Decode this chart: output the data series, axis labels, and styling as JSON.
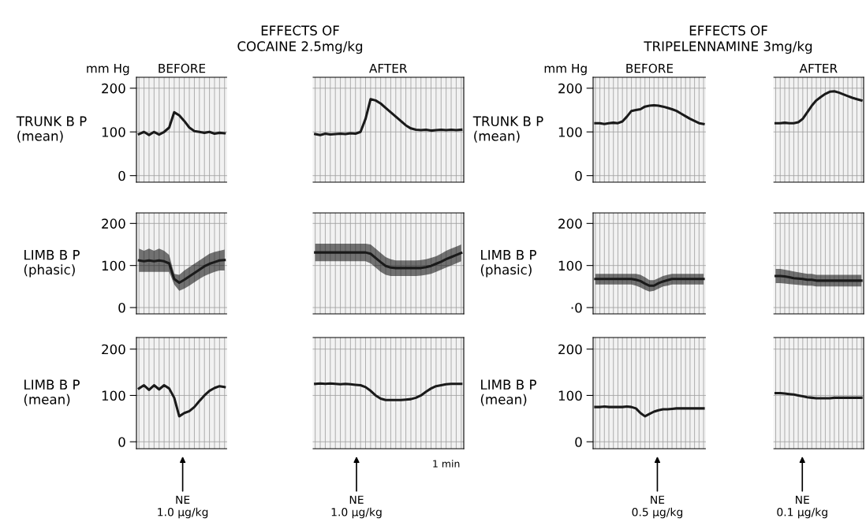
{
  "chart_data": [
    {
      "type": "line",
      "title": "EFFECTS OF\nCOCAINE 2.5mg/kg",
      "ylabel": "TRUNK B P\n(mean)",
      "annotations": [
        "mm Hg",
        "BEFORE",
        "AFTER"
      ],
      "categories": [
        null,
        null,
        null,
        null,
        null,
        null,
        null,
        null,
        null,
        null,
        null,
        null,
        null,
        null,
        null,
        null,
        null,
        null,
        null,
        null,
        null,
        null,
        null,
        null,
        null,
        null,
        null,
        null,
        null,
        null,
        null,
        null,
        null,
        null,
        null,
        null,
        null,
        null,
        null,
        null,
        null,
        null,
        null,
        null,
        null,
        null,
        null,
        null,
        null,
        null,
        null,
        null,
        null,
        null,
        null,
        null,
        null,
        null,
        null,
        null,
        null,
        null,
        null,
        null,
        null
      ],
      "series": [
        {
          "color": "#1a1a1a",
          "values": [
            95,
            100,
            93,
            100,
            94,
            100,
            110,
            145,
            138,
            125,
            110,
            102,
            100,
            98,
            100,
            96,
            98,
            97,
            null,
            null,
            null,
            null,
            null,
            null,
            null,
            null,
            null,
            null,
            null,
            null,
            null,
            null,
            null,
            null,
            null,
            95,
            93,
            96,
            94,
            95,
            96,
            95,
            97,
            96,
            100,
            130,
            175,
            172,
            165,
            155,
            145,
            135,
            125,
            115,
            108,
            105,
            104,
            105,
            103,
            104,
            105,
            104,
            105,
            104,
            105
          ]
        }
      ],
      "ylim": [
        -15,
        225
      ],
      "yticks": [
        0,
        100,
        200
      ],
      "tick_labels": "y",
      "grid": true
    },
    {
      "type": "line",
      "title": "EFFECTS OF\nTRIPELENNAMINE 3mg/kg",
      "ylabel": "TRUNK B P\n(mean)",
      "annotations": [
        "mm Hg",
        "BEFORE",
        "AFTER"
      ],
      "categories": [
        null,
        null,
        null,
        null,
        null,
        null,
        null,
        null,
        null,
        null,
        null,
        null,
        null,
        null,
        null,
        null,
        null,
        null,
        null,
        null,
        null,
        null,
        null,
        null,
        null,
        null,
        null,
        null,
        null,
        null,
        null,
        null,
        null,
        null,
        null,
        null,
        null,
        null,
        null,
        null,
        null,
        null,
        null,
        null,
        null,
        null,
        null,
        null,
        null,
        null,
        null,
        null,
        null,
        null,
        null,
        null,
        null,
        null,
        null,
        null
      ],
      "series": [
        {
          "color": "#1a1a1a",
          "values": [
            120,
            120,
            118,
            120,
            121,
            120,
            124,
            135,
            148,
            150,
            152,
            158,
            160,
            161,
            160,
            158,
            155,
            152,
            148,
            142,
            136,
            130,
            125,
            120,
            118,
            null,
            null,
            null,
            null,
            null,
            null,
            null,
            null,
            null,
            null,
            null,
            null,
            null,
            null,
            null,
            120,
            120,
            121,
            120,
            120,
            122,
            130,
            145,
            160,
            172,
            180,
            187,
            192,
            193,
            190,
            186,
            182,
            178,
            175,
            172
          ]
        }
      ],
      "ylim": [
        -15,
        225
      ],
      "yticks": [
        0,
        100,
        200
      ],
      "tick_labels": "y",
      "grid": true
    },
    {
      "type": "line",
      "ylabel": "LIMB B P\n(phasic)",
      "categories": [
        null,
        null,
        null,
        null,
        null,
        null,
        null,
        null,
        null,
        null,
        null,
        null,
        null,
        null,
        null,
        null,
        null,
        null,
        null,
        null,
        null,
        null,
        null,
        null,
        null,
        null,
        null,
        null,
        null,
        null,
        null,
        null,
        null,
        null,
        null,
        null,
        null,
        null,
        null,
        null,
        null,
        null,
        null,
        null,
        null,
        null,
        null,
        null,
        null,
        null,
        null,
        null,
        null,
        null,
        null,
        null,
        null,
        null,
        null,
        null,
        null,
        null,
        null,
        null,
        null
      ],
      "series": [
        {
          "color": "#1a1a1a",
          "values": [
            112,
            110,
            112,
            110,
            112,
            110,
            105,
            68,
            59,
            66,
            74,
            82,
            90,
            98,
            104,
            108,
            112,
            113,
            null,
            null,
            null,
            null,
            null,
            null,
            null,
            null,
            null,
            null,
            null,
            null,
            null,
            null,
            null,
            null,
            null,
            131,
            131,
            131,
            131,
            131,
            131,
            131,
            131,
            131,
            131,
            131,
            128,
            118,
            108,
            99,
            95,
            94,
            94,
            94,
            94,
            94,
            94,
            96,
            99,
            104,
            109,
            115,
            120,
            125,
            130
          ],
          "lower": [
            85,
            85,
            85,
            85,
            85,
            85,
            85,
            55,
            40,
            45,
            52,
            60,
            68,
            75,
            80,
            85,
            88,
            88,
            null,
            null,
            null,
            null,
            null,
            null,
            null,
            null,
            null,
            null,
            null,
            null,
            null,
            null,
            null,
            null,
            null,
            110,
            110,
            110,
            110,
            110,
            110,
            110,
            110,
            110,
            110,
            110,
            105,
            95,
            85,
            78,
            75,
            75,
            75,
            75,
            75,
            75,
            76,
            78,
            80,
            85,
            90,
            95,
            100,
            105,
            110
          ],
          "upper": [
            140,
            135,
            140,
            135,
            140,
            135,
            125,
            80,
            78,
            88,
            96,
            104,
            112,
            120,
            128,
            132,
            135,
            138,
            null,
            null,
            null,
            null,
            null,
            null,
            null,
            null,
            null,
            null,
            null,
            null,
            null,
            null,
            null,
            null,
            null,
            152,
            152,
            152,
            152,
            152,
            152,
            152,
            152,
            152,
            152,
            152,
            150,
            140,
            130,
            120,
            115,
            112,
            112,
            112,
            112,
            112,
            113,
            115,
            118,
            122,
            128,
            135,
            140,
            145,
            150
          ]
        }
      ],
      "ylim": [
        -15,
        225
      ],
      "yticks": [
        0,
        100,
        200
      ],
      "tick_labels": "y",
      "grid": true
    },
    {
      "type": "line",
      "ylabel": "LIMB B P\n(phasic)",
      "categories": [
        null,
        null,
        null,
        null,
        null,
        null,
        null,
        null,
        null,
        null,
        null,
        null,
        null,
        null,
        null,
        null,
        null,
        null,
        null,
        null,
        null,
        null,
        null,
        null,
        null,
        null,
        null,
        null,
        null,
        null,
        null,
        null,
        null,
        null,
        null,
        null,
        null,
        null,
        null,
        null,
        null,
        null,
        null,
        null,
        null,
        null,
        null,
        null,
        null,
        null,
        null,
        null,
        null,
        null,
        null,
        null,
        null,
        null,
        null,
        null
      ],
      "series": [
        {
          "color": "#1a1a1a",
          "values": [
            68,
            68,
            68,
            68,
            68,
            68,
            68,
            68,
            68,
            66,
            63,
            57,
            52,
            52,
            58,
            62,
            65,
            68,
            68,
            68,
            68,
            68,
            68,
            68,
            68,
            null,
            null,
            null,
            null,
            null,
            null,
            null,
            null,
            null,
            null,
            null,
            null,
            null,
            null,
            null,
            75,
            75,
            74,
            72,
            70,
            69,
            68,
            66,
            66,
            64,
            64,
            64,
            64,
            64,
            64,
            64,
            64,
            64,
            64,
            64
          ],
          "lower": [
            55,
            55,
            55,
            55,
            55,
            55,
            55,
            55,
            55,
            52,
            48,
            42,
            38,
            40,
            45,
            50,
            52,
            55,
            55,
            55,
            55,
            55,
            55,
            55,
            55,
            null,
            null,
            null,
            null,
            null,
            null,
            null,
            null,
            null,
            null,
            null,
            null,
            null,
            null,
            null,
            58,
            58,
            57,
            56,
            55,
            54,
            53,
            52,
            52,
            50,
            50,
            50,
            50,
            50,
            50,
            50,
            50,
            50,
            50,
            50
          ],
          "upper": [
            80,
            80,
            80,
            80,
            80,
            80,
            80,
            80,
            80,
            80,
            78,
            72,
            65,
            65,
            70,
            75,
            78,
            80,
            80,
            80,
            80,
            80,
            80,
            80,
            80,
            null,
            null,
            null,
            null,
            null,
            null,
            null,
            null,
            null,
            null,
            null,
            null,
            null,
            null,
            null,
            92,
            92,
            90,
            88,
            86,
            84,
            82,
            80,
            80,
            78,
            78,
            78,
            78,
            78,
            78,
            78,
            78,
            78,
            78,
            78
          ]
        }
      ],
      "ylim": [
        -15,
        225
      ],
      "yticks": [
        {
          "value": 0,
          "label": "·0"
        },
        100,
        200
      ],
      "tick_labels": "y",
      "grid": true
    },
    {
      "type": "line",
      "ylabel": "LIMB B P\n(mean)",
      "annotations": [
        "NE\n1.0 µg/kg",
        "NE\n1.0 µg/kg",
        "1 min"
      ],
      "categories": [
        null,
        null,
        null,
        null,
        null,
        null,
        null,
        null,
        null,
        null,
        null,
        null,
        null,
        null,
        null,
        null,
        null,
        null,
        null,
        null,
        null,
        null,
        null,
        null,
        null,
        null,
        null,
        null,
        null,
        null,
        null,
        null,
        null,
        null,
        null,
        null,
        null,
        null,
        null,
        null,
        null,
        null,
        null,
        null,
        null,
        null,
        null,
        null,
        null,
        null,
        null,
        null,
        null,
        null,
        null,
        null,
        null,
        null,
        null,
        null,
        null,
        null,
        null,
        null,
        null
      ],
      "series": [
        {
          "color": "#1a1a1a",
          "values": [
            115,
            122,
            112,
            122,
            113,
            122,
            115,
            95,
            55,
            62,
            66,
            75,
            88,
            100,
            110,
            116,
            120,
            118,
            null,
            null,
            null,
            null,
            null,
            null,
            null,
            null,
            null,
            null,
            null,
            null,
            null,
            null,
            null,
            null,
            null,
            125,
            126,
            125,
            126,
            125,
            124,
            125,
            124,
            123,
            122,
            118,
            110,
            100,
            93,
            90,
            90,
            90,
            90,
            91,
            92,
            95,
            100,
            108,
            115,
            120,
            122,
            124,
            125,
            125,
            125
          ]
        }
      ],
      "ylim": [
        -15,
        225
      ],
      "yticks": [
        0,
        100,
        200
      ],
      "tick_labels": "y",
      "grid": true
    },
    {
      "type": "line",
      "ylabel": "LIMB B P\n(mean)",
      "annotations": [
        "NE\n0.5 µg/kg",
        "NE\n0.1 µg/kg"
      ],
      "categories": [
        null,
        null,
        null,
        null,
        null,
        null,
        null,
        null,
        null,
        null,
        null,
        null,
        null,
        null,
        null,
        null,
        null,
        null,
        null,
        null,
        null,
        null,
        null,
        null,
        null,
        null,
        null,
        null,
        null,
        null,
        null,
        null,
        null,
        null,
        null,
        null,
        null,
        null,
        null,
        null,
        null,
        null,
        null,
        null,
        null,
        null,
        null,
        null,
        null,
        null,
        null,
        null,
        null,
        null,
        null,
        null,
        null,
        null,
        null,
        null
      ],
      "series": [
        {
          "color": "#1a1a1a",
          "values": [
            75,
            75,
            76,
            75,
            75,
            75,
            75,
            76,
            75,
            72,
            62,
            55,
            60,
            65,
            68,
            70,
            70,
            71,
            72,
            72,
            72,
            72,
            72,
            72,
            72,
            null,
            null,
            null,
            null,
            null,
            null,
            null,
            null,
            null,
            null,
            null,
            null,
            null,
            null,
            null,
            105,
            105,
            104,
            103,
            102,
            100,
            98,
            96,
            95,
            94,
            94,
            94,
            94,
            95,
            95,
            95,
            95,
            95,
            95,
            95
          ]
        }
      ],
      "ylim": [
        -15,
        225
      ],
      "yticks": [
        0,
        100,
        200
      ],
      "tick_labels": "y",
      "grid": true
    }
  ]
}
